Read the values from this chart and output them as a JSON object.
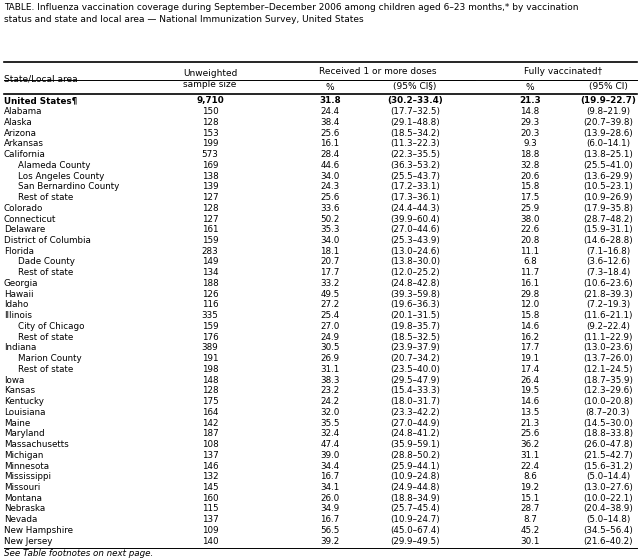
{
  "title": "TABLE. Influenza vaccination coverage during September–December 2006 among children aged 6–23 months,* by vaccination\nstatus and state and local area — National Immunization Survey, United States",
  "group_header1": "Received 1 or more doses",
  "group_header2": "Fully vaccinated†",
  "footnote": "See Table footnotes on next page.",
  "rows": [
    [
      "United States¶",
      "9,710",
      "31.8",
      "(30.2–33.4)",
      "21.3",
      "(19.9–22.7)",
      false,
      true
    ],
    [
      "Alabama",
      "150",
      "24.4",
      "(17.7–32.5)",
      "14.8",
      "(9.8–21.9)",
      false,
      false
    ],
    [
      "Alaska",
      "128",
      "38.4",
      "(29.1–48.8)",
      "29.3",
      "(20.7–39.8)",
      false,
      false
    ],
    [
      "Arizona",
      "153",
      "25.6",
      "(18.5–34.2)",
      "20.3",
      "(13.9–28.6)",
      false,
      false
    ],
    [
      "Arkansas",
      "199",
      "16.1",
      "(11.3–22.3)",
      "9.3",
      "(6.0–14.1)",
      false,
      false
    ],
    [
      "California",
      "573",
      "28.4",
      "(22.3–35.5)",
      "18.8",
      "(13.8–25.1)",
      false,
      false
    ],
    [
      "Alameda County",
      "169",
      "44.6",
      "(36.3–53.2)",
      "32.8",
      "(25.5–41.0)",
      true,
      false
    ],
    [
      "Los Angeles County",
      "138",
      "34.0",
      "(25.5–43.7)",
      "20.6",
      "(13.6–29.9)",
      true,
      false
    ],
    [
      "San Bernardino County",
      "139",
      "24.3",
      "(17.2–33.1)",
      "15.8",
      "(10.5–23.1)",
      true,
      false
    ],
    [
      "Rest of state",
      "127",
      "25.6",
      "(17.3–36.1)",
      "17.5",
      "(10.9–26.9)",
      true,
      false
    ],
    [
      "Colorado",
      "128",
      "33.6",
      "(24.4–44.3)",
      "25.9",
      "(17.9–35.8)",
      false,
      false
    ],
    [
      "Connecticut",
      "127",
      "50.2",
      "(39.9–60.4)",
      "38.0",
      "(28.7–48.2)",
      false,
      false
    ],
    [
      "Delaware",
      "161",
      "35.3",
      "(27.0–44.6)",
      "22.6",
      "(15.9–31.1)",
      false,
      false
    ],
    [
      "District of Columbia",
      "159",
      "34.0",
      "(25.3–43.9)",
      "20.8",
      "(14.6–28.8)",
      false,
      false
    ],
    [
      "Florida",
      "283",
      "18.1",
      "(13.0–24.6)",
      "11.1",
      "(7.1–16.8)",
      false,
      false
    ],
    [
      "Dade County",
      "149",
      "20.7",
      "(13.8–30.0)",
      "6.8",
      "(3.6–12.6)",
      true,
      false
    ],
    [
      "Rest of state",
      "134",
      "17.7",
      "(12.0–25.2)",
      "11.7",
      "(7.3–18.4)",
      true,
      false
    ],
    [
      "Georgia",
      "188",
      "33.2",
      "(24.8–42.8)",
      "16.1",
      "(10.6–23.6)",
      false,
      false
    ],
    [
      "Hawaii",
      "126",
      "49.5",
      "(39.3–59.8)",
      "29.8",
      "(21.8–39.3)",
      false,
      false
    ],
    [
      "Idaho",
      "116",
      "27.2",
      "(19.6–36.3)",
      "12.0",
      "(7.2–19.3)",
      false,
      false
    ],
    [
      "Illinois",
      "335",
      "25.4",
      "(20.1–31.5)",
      "15.8",
      "(11.6–21.1)",
      false,
      false
    ],
    [
      "City of Chicago",
      "159",
      "27.0",
      "(19.8–35.7)",
      "14.6",
      "(9.2–22.4)",
      true,
      false
    ],
    [
      "Rest of state",
      "176",
      "24.9",
      "(18.5–32.5)",
      "16.2",
      "(11.1–22.9)",
      true,
      false
    ],
    [
      "Indiana",
      "389",
      "30.5",
      "(23.9–37.9)",
      "17.7",
      "(13.0–23.6)",
      false,
      false
    ],
    [
      "Marion County",
      "191",
      "26.9",
      "(20.7–34.2)",
      "19.1",
      "(13.7–26.0)",
      true,
      false
    ],
    [
      "Rest of state",
      "198",
      "31.1",
      "(23.5–40.0)",
      "17.4",
      "(12.1–24.5)",
      true,
      false
    ],
    [
      "Iowa",
      "148",
      "38.3",
      "(29.5–47.9)",
      "26.4",
      "(18.7–35.9)",
      false,
      false
    ],
    [
      "Kansas",
      "128",
      "23.2",
      "(15.4–33.3)",
      "19.5",
      "(12.3–29.6)",
      false,
      false
    ],
    [
      "Kentucky",
      "175",
      "24.2",
      "(18.0–31.7)",
      "14.6",
      "(10.0–20.8)",
      false,
      false
    ],
    [
      "Louisiana",
      "164",
      "32.0",
      "(23.3–42.2)",
      "13.5",
      "(8.7–20.3)",
      false,
      false
    ],
    [
      "Maine",
      "142",
      "35.5",
      "(27.0–44.9)",
      "21.3",
      "(14.5–30.0)",
      false,
      false
    ],
    [
      "Maryland",
      "187",
      "32.4",
      "(24.8–41.2)",
      "25.6",
      "(18.8–33.8)",
      false,
      false
    ],
    [
      "Massachusetts",
      "108",
      "47.4",
      "(35.9–59.1)",
      "36.2",
      "(26.0–47.8)",
      false,
      false
    ],
    [
      "Michigan",
      "137",
      "39.0",
      "(28.8–50.2)",
      "31.1",
      "(21.5–42.7)",
      false,
      false
    ],
    [
      "Minnesota",
      "146",
      "34.4",
      "(25.9–44.1)",
      "22.4",
      "(15.6–31.2)",
      false,
      false
    ],
    [
      "Mississippi",
      "132",
      "16.7",
      "(10.9–24.8)",
      "8.6",
      "(5.0–14.4)",
      false,
      false
    ],
    [
      "Missouri",
      "145",
      "34.1",
      "(24.9–44.8)",
      "19.2",
      "(13.0–27.6)",
      false,
      false
    ],
    [
      "Montana",
      "160",
      "26.0",
      "(18.8–34.9)",
      "15.1",
      "(10.0–22.1)",
      false,
      false
    ],
    [
      "Nebraska",
      "115",
      "34.9",
      "(25.7–45.4)",
      "28.7",
      "(20.4–38.9)",
      false,
      false
    ],
    [
      "Nevada",
      "137",
      "16.7",
      "(10.9–24.7)",
      "8.7",
      "(5.0–14.8)",
      false,
      false
    ],
    [
      "New Hampshire",
      "109",
      "56.5",
      "(45.0–67.4)",
      "45.2",
      "(34.5–56.4)",
      false,
      false
    ],
    [
      "New Jersey",
      "140",
      "39.2",
      "(29.9–49.5)",
      "30.1",
      "(21.6–40.2)",
      false,
      false
    ]
  ]
}
